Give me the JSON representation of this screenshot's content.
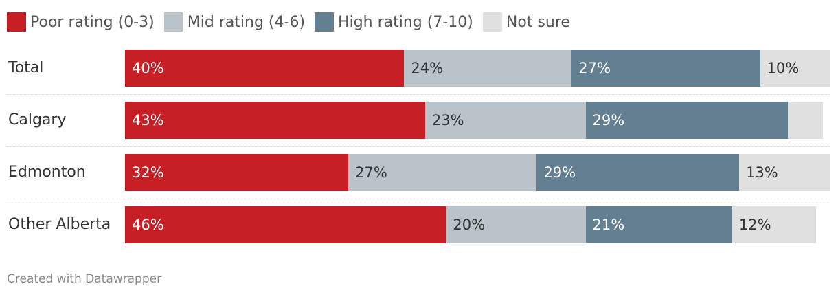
{
  "chart_data": {
    "type": "bar",
    "orientation": "horizontal",
    "stacked": true,
    "categories": [
      "Total",
      "Calgary",
      "Edmonton",
      "Other Alberta"
    ],
    "series": [
      {
        "name": "Poor rating (0-3)",
        "color": "#c62026",
        "values": [
          40,
          43,
          32,
          46
        ],
        "labels": [
          "40%",
          "43%",
          "32%",
          "46%"
        ]
      },
      {
        "name": "Mid rating (4-6)",
        "color": "#b9c3c9",
        "values": [
          24,
          23,
          27,
          20
        ],
        "labels": [
          "24%",
          "23%",
          "27%",
          "20%"
        ]
      },
      {
        "name": "High rating (7-10)",
        "color": "#637f91",
        "values": [
          27,
          29,
          29,
          21
        ],
        "labels": [
          "27%",
          "29%",
          "29%",
          "21%"
        ]
      },
      {
        "name": "Not sure",
        "color": "#e0e0e0",
        "values": [
          10,
          5,
          13,
          12
        ],
        "labels": [
          "10%",
          "",
          "13%",
          "12%"
        ]
      }
    ],
    "xlim": [
      0,
      100
    ],
    "legend_position": "top-left",
    "grid": false
  },
  "footer": "Created with Datawrapper"
}
